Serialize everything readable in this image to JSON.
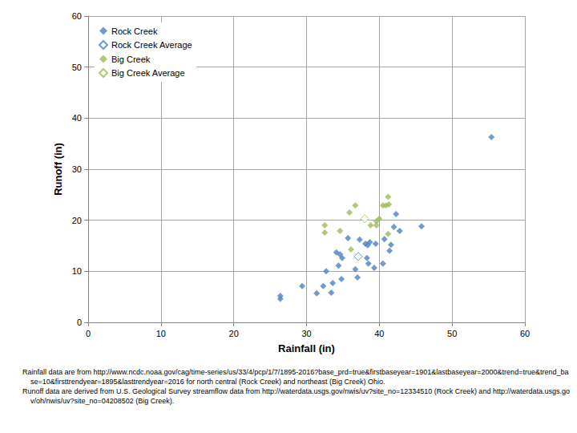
{
  "chart_data": {
    "type": "scatter",
    "x_label": "Rainfall (in)",
    "y_label": "Runoff (in)",
    "xlim": [
      0,
      60
    ],
    "xticks": [
      0,
      10,
      20,
      30,
      40,
      50,
      60
    ],
    "ylim": [
      0,
      60
    ],
    "yticks": [
      0,
      10,
      20,
      30,
      40,
      50,
      60
    ],
    "grid": true,
    "legend": "top-left",
    "series": [
      {
        "name": "Rock Creek",
        "color": "#4f81bd",
        "marker": "diamond",
        "values": [
          [
            26.4,
            5.2
          ],
          [
            26.4,
            4.6
          ],
          [
            29.4,
            7.1
          ],
          [
            31.4,
            5.7
          ],
          [
            32.3,
            7.1
          ],
          [
            32.7,
            10.0
          ],
          [
            33.4,
            5.8
          ],
          [
            33.6,
            7.7
          ],
          [
            34.1,
            13.7
          ],
          [
            34.4,
            11.1
          ],
          [
            34.6,
            13.3
          ],
          [
            34.9,
            12.6
          ],
          [
            34.8,
            8.5
          ],
          [
            35.7,
            16.5
          ],
          [
            36.7,
            10.4
          ],
          [
            37.0,
            8.8
          ],
          [
            37.3,
            16.2
          ],
          [
            38.1,
            15.4
          ],
          [
            38.3,
            12.6
          ],
          [
            38.4,
            15.1
          ],
          [
            38.5,
            11.5
          ],
          [
            38.7,
            15.7
          ],
          [
            39.3,
            10.7
          ],
          [
            39.5,
            15.4
          ],
          [
            40.5,
            11.5
          ],
          [
            40.7,
            16.3
          ],
          [
            41.4,
            14.0
          ],
          [
            41.6,
            15.2
          ],
          [
            42.0,
            18.7
          ],
          [
            42.3,
            21.2
          ],
          [
            42.8,
            17.9
          ],
          [
            45.8,
            18.8
          ],
          [
            55.4,
            36.3
          ]
        ]
      },
      {
        "name": "Rock Creek Average",
        "color": "#4f81bd",
        "marker": "open_diamond",
        "values": [
          [
            37.1,
            12.9
          ]
        ]
      },
      {
        "name": "Big Creek",
        "color": "#9bbb59",
        "marker": "diamond",
        "values": [
          [
            32.5,
            19.0
          ],
          [
            32.5,
            17.6
          ],
          [
            34.6,
            17.9
          ],
          [
            35.9,
            21.5
          ],
          [
            36.1,
            14.3
          ],
          [
            36.7,
            22.9
          ],
          [
            38.8,
            19.0
          ],
          [
            39.6,
            19.8
          ],
          [
            39.6,
            19.0
          ],
          [
            40.0,
            20.3
          ],
          [
            40.5,
            22.9
          ],
          [
            40.9,
            22.9
          ],
          [
            41.2,
            24.6
          ],
          [
            41.3,
            23.1
          ],
          [
            41.2,
            17.3
          ]
        ]
      },
      {
        "name": "Big Creek Average",
        "color": "#9bbb59",
        "marker": "open_diamond",
        "values": [
          [
            38.0,
            20.3
          ]
        ]
      }
    ],
    "footnotes": [
      "Rainfall data are from http://www.ncdc.noaa.gov/cag/time-series/us/33/4/pcp/1/7/1895-2016?base_prd=true&firstbaseyear=1901&lastbaseyear=2000&trend=true&trend_base=10&firsttrendyear=1895&lasttrendyear=2016 for north central (Rock Creek) and northeast (Big Creek) Ohio.",
      "Runoff data are derived from U.S. Geological Survey streamflow data from http://waterdata.usgs.gov/nwis/uv?site_no=12334510 (Rock Creek) and http://waterdata.usgs.gov/oh/nwis/uv?site_no=04208502 (Big Creek)."
    ]
  }
}
